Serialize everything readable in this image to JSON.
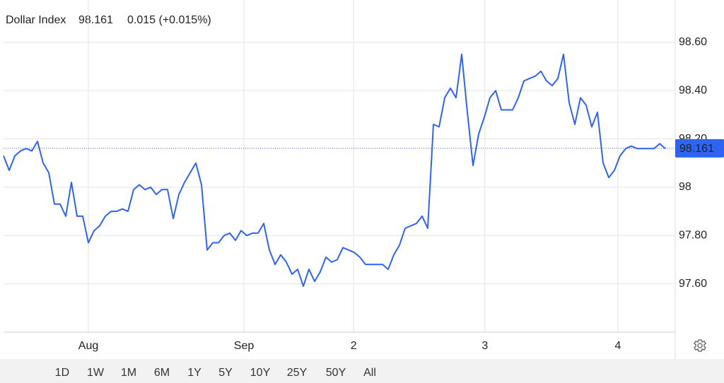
{
  "chart_data": {
    "type": "line",
    "title": "Dollar Index",
    "last_value": 98.161,
    "change_label": "0.015 (+0.015%)",
    "color": "#2f63f2",
    "up_color": "#3cb043",
    "grid": true,
    "x": [
      0,
      1,
      2,
      3,
      4,
      5,
      6,
      7,
      8,
      9,
      10,
      11,
      12,
      13,
      14,
      15,
      16,
      17,
      18,
      19,
      20,
      21,
      22,
      23,
      24,
      25,
      26,
      27,
      28,
      29,
      30,
      31,
      32,
      33,
      34,
      35,
      36,
      37,
      38,
      39,
      40,
      41,
      42,
      43,
      44,
      45,
      46,
      47,
      48,
      49,
      50,
      51,
      52,
      53,
      54,
      55,
      56,
      57,
      58,
      59,
      60,
      61,
      62,
      63,
      64,
      65,
      66,
      67,
      68,
      69,
      70,
      71,
      72,
      73,
      74,
      75,
      76,
      77,
      78,
      79,
      80,
      81,
      82,
      83,
      84,
      85,
      86,
      87,
      88,
      89,
      90,
      91,
      92,
      93,
      94,
      95,
      96,
      97,
      98,
      99,
      100,
      101,
      102,
      103,
      104,
      105,
      106,
      107,
      108,
      109,
      110,
      111,
      112,
      113,
      114,
      115,
      116,
      117
    ],
    "values": [
      98.13,
      98.07,
      98.13,
      98.15,
      98.16,
      98.15,
      98.19,
      98.1,
      98.06,
      97.93,
      97.93,
      97.88,
      98.02,
      97.88,
      97.88,
      97.77,
      97.82,
      97.84,
      97.88,
      97.9,
      97.9,
      97.91,
      97.9,
      97.99,
      98.01,
      97.99,
      98.0,
      97.97,
      97.99,
      97.99,
      97.87,
      97.97,
      98.02,
      98.06,
      98.1,
      98.01,
      97.74,
      97.77,
      97.77,
      97.8,
      97.81,
      97.78,
      97.82,
      97.8,
      97.81,
      97.81,
      97.85,
      97.74,
      97.68,
      97.72,
      97.69,
      97.64,
      97.66,
      97.59,
      97.66,
      97.61,
      97.65,
      97.71,
      97.69,
      97.7,
      97.75,
      97.74,
      97.73,
      97.71,
      97.68,
      97.68,
      97.68,
      97.68,
      97.66,
      97.72,
      97.76,
      97.83,
      97.84,
      97.85,
      97.88,
      97.83,
      98.26,
      98.25,
      98.37,
      98.41,
      98.37,
      98.55,
      98.31,
      98.09,
      98.22,
      98.29,
      98.37,
      98.4,
      98.32,
      98.32,
      98.32,
      98.37,
      98.44,
      98.45,
      98.46,
      98.48,
      98.44,
      98.42,
      98.45,
      98.55,
      98.35,
      98.26,
      98.37,
      98.34,
      98.25,
      98.31,
      98.1,
      98.04,
      98.07,
      98.13,
      98.16,
      98.17,
      98.16,
      98.16,
      98.16,
      98.16,
      98.18,
      98.16
    ],
    "xlim": [
      0,
      118.75
    ],
    "xticks": [
      {
        "value": 15,
        "label": "Aug"
      },
      {
        "value": 42.5,
        "label": "Sep"
      },
      {
        "value": 61.9,
        "label": "2"
      },
      {
        "value": 85.1,
        "label": "3"
      },
      {
        "value": 108.6,
        "label": "4"
      }
    ],
    "ylim": [
      97.4,
      98.775
    ],
    "yticks": [
      {
        "value": 98.6,
        "label": "98.60"
      },
      {
        "value": 98.4,
        "label": "98.40"
      },
      {
        "value": 98.2,
        "label": "98.20"
      },
      98,
      {
        "value": 97.8,
        "label": "97.80"
      },
      {
        "value": 97.6,
        "label": "97.60"
      }
    ]
  },
  "range_selector": {
    "options": [
      "1D",
      "1W",
      "1M",
      "6M",
      "1Y",
      "5Y",
      "10Y",
      "25Y",
      "50Y",
      "All"
    ],
    "selected": 1
  }
}
